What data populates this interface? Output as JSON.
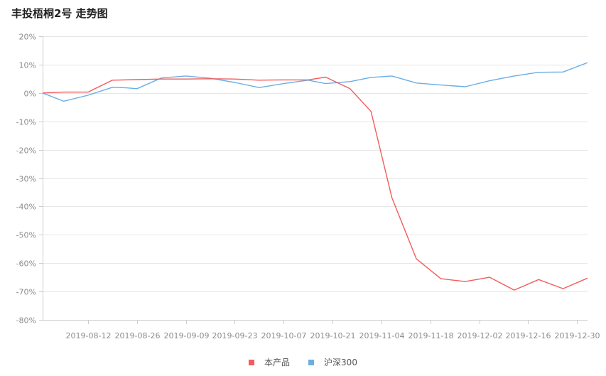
{
  "title": "丰投梧桐2号 走势图",
  "chart_data": {
    "type": "line",
    "title": "丰投梧桐2号 走势图",
    "xlabel": "",
    "ylabel": "",
    "x": [
      "2019-07-30",
      "2019-08-05",
      "2019-08-12",
      "2019-08-19",
      "2019-08-26",
      "2019-09-02",
      "2019-09-09",
      "2019-09-16",
      "2019-09-23",
      "2019-09-30",
      "2019-10-07",
      "2019-10-14",
      "2019-10-21",
      "2019-10-28",
      "2019-11-04",
      "2019-11-11",
      "2019-11-18",
      "2019-11-25",
      "2019-12-02",
      "2019-12-09",
      "2019-12-16",
      "2019-12-23",
      "2019-12-30"
    ],
    "x_ticks": [
      "2019-08-12",
      "2019-08-26",
      "2019-09-09",
      "2019-09-23",
      "2019-10-07",
      "2019-10-21",
      "2019-11-04",
      "2019-11-18",
      "2019-12-02",
      "2019-12-16",
      "2019-12-30"
    ],
    "y_ticks": [
      "20%",
      "10%",
      "0%",
      "-10%",
      "-20%",
      "-30%",
      "-40%",
      "-50%",
      "-60%",
      "-70%",
      "-80%"
    ],
    "ylim": [
      -80,
      20
    ],
    "y_unit": "%",
    "grid": true,
    "legend_position": "bottom-center",
    "series": [
      {
        "name": "本产品",
        "color": "#f25c5c",
        "points": [
          [
            "2019-07-30",
            0.0
          ],
          [
            "2019-08-05",
            0.3
          ],
          [
            "2019-08-12",
            0.3
          ],
          [
            "2019-08-19",
            4.5
          ],
          [
            "2019-08-26",
            4.7
          ],
          [
            "2019-09-02",
            4.9
          ],
          [
            "2019-09-09",
            4.9
          ],
          [
            "2019-09-16",
            5.0
          ],
          [
            "2019-09-23",
            4.9
          ],
          [
            "2019-09-30",
            4.5
          ],
          [
            "2019-10-07",
            4.6
          ],
          [
            "2019-10-14",
            4.6
          ],
          [
            "2019-10-19",
            5.6
          ],
          [
            "2019-10-26",
            1.5
          ],
          [
            "2019-11-01",
            -6.5
          ],
          [
            "2019-11-07",
            -37.0
          ],
          [
            "2019-11-14",
            -58.5
          ],
          [
            "2019-11-21",
            -65.5
          ],
          [
            "2019-11-28",
            -66.5
          ],
          [
            "2019-12-05",
            -65.0
          ],
          [
            "2019-12-12",
            -69.5
          ],
          [
            "2019-12-19",
            -65.8
          ],
          [
            "2019-12-26",
            -69.0
          ],
          [
            "2020-01-02",
            -65.3
          ]
        ]
      },
      {
        "name": "沪深300",
        "color": "#6aaee5",
        "points": [
          [
            "2019-07-30",
            0.0
          ],
          [
            "2019-08-05",
            -2.9
          ],
          [
            "2019-08-12",
            -0.8
          ],
          [
            "2019-08-19",
            2.0
          ],
          [
            "2019-08-23",
            1.8
          ],
          [
            "2019-08-26",
            1.5
          ],
          [
            "2019-09-02",
            5.3
          ],
          [
            "2019-09-09",
            6.0
          ],
          [
            "2019-09-16",
            5.2
          ],
          [
            "2019-09-23",
            3.7
          ],
          [
            "2019-09-30",
            1.9
          ],
          [
            "2019-10-07",
            3.3
          ],
          [
            "2019-10-14",
            4.5
          ],
          [
            "2019-10-19",
            3.3
          ],
          [
            "2019-10-26",
            4.0
          ],
          [
            "2019-11-01",
            5.5
          ],
          [
            "2019-11-07",
            6.0
          ],
          [
            "2019-11-14",
            3.5
          ],
          [
            "2019-11-21",
            2.8
          ],
          [
            "2019-11-28",
            2.2
          ],
          [
            "2019-12-05",
            4.3
          ],
          [
            "2019-12-12",
            6.0
          ],
          [
            "2019-12-19",
            7.3
          ],
          [
            "2019-12-26",
            7.4
          ],
          [
            "2020-01-02",
            10.7
          ]
        ]
      }
    ]
  }
}
